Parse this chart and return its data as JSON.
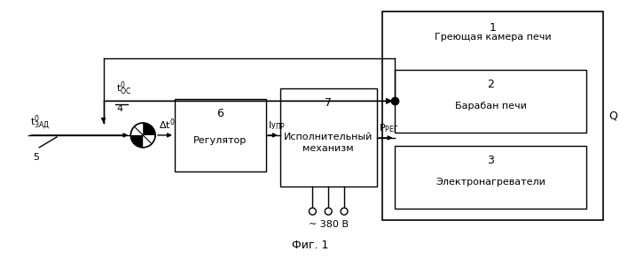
{
  "background_color": "#ffffff",
  "fig_label": "Фиг. 1",
  "outer_num": "1",
  "outer_sublabel": "Греющая камера печи",
  "block2_num": "2",
  "block2_text": "Барабан печи",
  "block3_num": "3",
  "block3_text": "Электронагреватели",
  "block6_num": "6",
  "block6_text": "Регулятор",
  "block7_num": "7",
  "block7_text": "Исполнительный\nмеханизм",
  "input_label": "t",
  "input_sup": "0",
  "input_sub": "ЗАД",
  "input_num": "5",
  "fb_label": "t",
  "fb_sup": "0",
  "fb_sub": "ОС",
  "fb_num": "4",
  "delta_label": "Δt°",
  "i_upr_label": "I",
  "i_upr_sub": "УПР",
  "p_reg_label": "P",
  "p_reg_sub": "РЕГ",
  "q_label": "Q",
  "v380_label": "~ 380 В"
}
